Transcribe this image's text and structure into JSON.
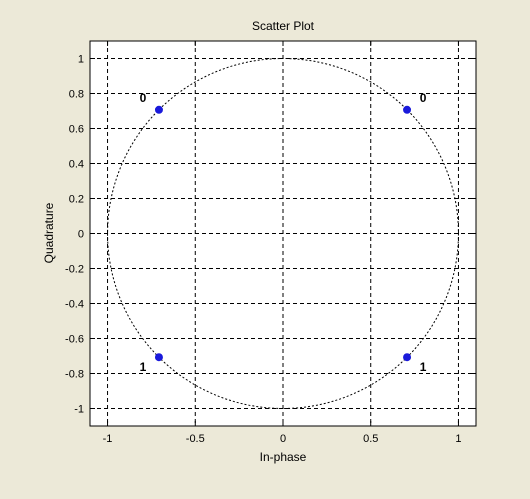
{
  "chart_data": {
    "type": "scatter",
    "title": "Scatter Plot",
    "xlabel": "In-phase",
    "ylabel": "Quadrature",
    "xlim": [
      -1.1,
      1.1
    ],
    "ylim": [
      -1.1,
      1.1
    ],
    "grid": true,
    "x_ticks": [
      -1,
      -0.5,
      0,
      0.5,
      1
    ],
    "x_tick_labels": [
      "-1",
      "-0.5",
      "0",
      "0.5",
      "1"
    ],
    "y_ticks": [
      1,
      0.8,
      0.6,
      0.4,
      0.2,
      0,
      -0.2,
      -0.4,
      -0.6,
      -0.8,
      -1
    ],
    "y_tick_labels": [
      "1",
      "0.8",
      "0.6",
      "0.4",
      "0.2",
      "0",
      "-0.2",
      "-0.4",
      "-0.6",
      "-0.8",
      "-1"
    ],
    "reference_circle": {
      "radius": 1,
      "style": "dashed"
    },
    "points": [
      {
        "x": -0.707,
        "y": 0.707,
        "label": "0"
      },
      {
        "x": 0.707,
        "y": 0.707,
        "label": "0"
      },
      {
        "x": -0.707,
        "y": -0.707,
        "label": "1"
      },
      {
        "x": 0.707,
        "y": -0.707,
        "label": "1"
      }
    ],
    "colors": {
      "background": "#ece9d8",
      "plot_area": "#ffffff",
      "point": "#1a1adb",
      "grid": "#000000"
    }
  }
}
